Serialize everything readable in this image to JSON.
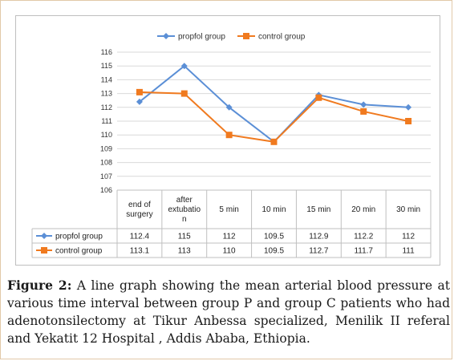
{
  "figure": {
    "label": "Figure 2:",
    "caption": "A line graph showing the mean arterial blood pressure at various time interval between group P and group C patients who had adenotonsilectomy at Tikur Anbessa specialized, Menilik II referal and Yekatit 12 Hospital , Addis Ababa, Ethiopia."
  },
  "chart_data": {
    "type": "line",
    "title": "",
    "xlabel": "",
    "ylabel": "",
    "categories": [
      "end of surgery",
      "after extubation",
      "5 min",
      "10 min",
      "15 min",
      "20 min",
      "30 min"
    ],
    "category_lines": [
      [
        "end of",
        "surgery"
      ],
      [
        "after",
        "extubatio",
        "n"
      ],
      [
        "5 min"
      ],
      [
        "10 min"
      ],
      [
        "15 min"
      ],
      [
        "20 min"
      ],
      [
        "30 min"
      ]
    ],
    "ylim": [
      106,
      116
    ],
    "yticks": [
      106,
      107,
      108,
      109,
      110,
      111,
      112,
      113,
      114,
      115,
      116
    ],
    "grid": "horizontal",
    "legend": "top-center",
    "data_table": true,
    "series": [
      {
        "name": "propfol group",
        "color": "#5b8fd6",
        "marker": "diamond",
        "values": [
          112.4,
          115,
          112,
          109.5,
          112.9,
          112.2,
          112
        ],
        "labels": [
          "112.4",
          "115",
          "112",
          "109.5",
          "112.9",
          "112.2",
          "112"
        ]
      },
      {
        "name": "control group",
        "color": "#f07a1f",
        "marker": "square",
        "values": [
          113.1,
          113,
          110,
          109.5,
          112.7,
          111.7,
          111
        ],
        "labels": [
          "113.1",
          "113",
          "110",
          "109.5",
          "112.7",
          "111.7",
          "111"
        ]
      }
    ]
  }
}
